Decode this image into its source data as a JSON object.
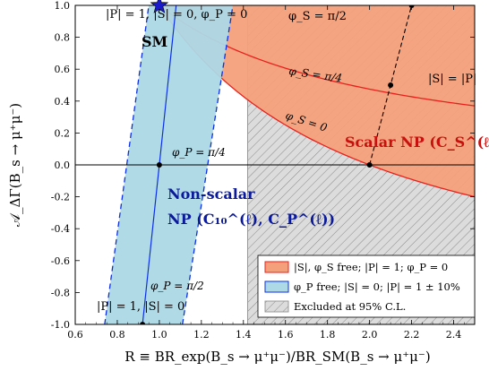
{
  "chart_data": {
    "type": "line",
    "xlabel": "R ≡ BR_exp(B_s → μ⁺μ⁻)/BR_SM(B_s → μ⁺μ⁻)",
    "ylabel": "𝒜_ΔΓ(B_s → μ⁺μ⁻)",
    "xlim": [
      0.6,
      2.5
    ],
    "ylim": [
      -1.0,
      1.0
    ],
    "xticks": [
      "0.6",
      "0.8",
      "1.0",
      "1.2",
      "1.4",
      "1.6",
      "1.8",
      "2.0",
      "2.2",
      "2.4"
    ],
    "yticks": [
      "-1.0",
      "-0.8",
      "-0.6",
      "-0.4",
      "-0.2",
      "0.0",
      "0.2",
      "0.4",
      "0.6",
      "0.8",
      "1.0"
    ],
    "excluded_region_xmin": 1.42,
    "sm_point": {
      "x": 1.0,
      "y": 1.0,
      "label": "SM"
    },
    "scalar_curves": [
      {
        "label": "φ_S = π/2",
        "R_at_y1": 1.0
      },
      {
        "label": "φ_S = π/4",
        "R_at_y1": 1.0
      },
      {
        "label": "φ_S = 0",
        "R_at_y1": 1.0
      }
    ],
    "scalar_region": {
      "label": "Scalar NP (C_S^(ℓ))",
      "color": "#f4a07a",
      "edge_color": "#e8211d"
    },
    "nonscalar_region": {
      "label_line1": "Non-scalar",
      "label_line2": "NP (C₁₀^(ℓ), C_P^(ℓ))",
      "color": "#add8e6",
      "edge_color": "#0b2fe8",
      "tolerance": 0.1
    },
    "s_equals_p_line": {
      "label": "|S| = |P|",
      "points": [
        [
          2.0,
          0.0
        ],
        [
          2.1,
          0.5
        ],
        [
          2.2,
          1.0
        ]
      ]
    },
    "annotations": {
      "top": "|P| = 1, |S| = 0, φ_P = 0",
      "phi_s_half": "φ_S = π/2",
      "phi_s_quarter": "φ_S = π/4",
      "phi_s_zero": "φ_S = 0",
      "phi_p_quarter": "φ_P = π/4",
      "phi_p_half": "φ_P = π/2",
      "bottom": "|P| = 1, |S| = 0"
    },
    "marked_points": [
      {
        "x": 1.0,
        "y": 0.0
      },
      {
        "x": 0.92,
        "y": -1.0
      },
      {
        "x": 2.0,
        "y": 0.0
      },
      {
        "x": 2.1,
        "y": 0.5
      },
      {
        "x": 2.2,
        "y": 1.0
      }
    ],
    "legend": {
      "position": "bottom-right",
      "entries": [
        {
          "label": "|S|, φ_S free; |P| = 1; φ_P = 0",
          "color": "#f4a07a",
          "edge": "#e8211d",
          "pattern": false
        },
        {
          "label": "φ_P free; |S| = 0; |P| = 1 ± 10%",
          "color": "#add8e6",
          "edge": "#0b2fe8",
          "pattern": false
        },
        {
          "label": "Excluded at 95% C.L.",
          "color": "#dcdcdc",
          "edge": "#999999",
          "pattern": true
        }
      ]
    },
    "grid": false
  }
}
